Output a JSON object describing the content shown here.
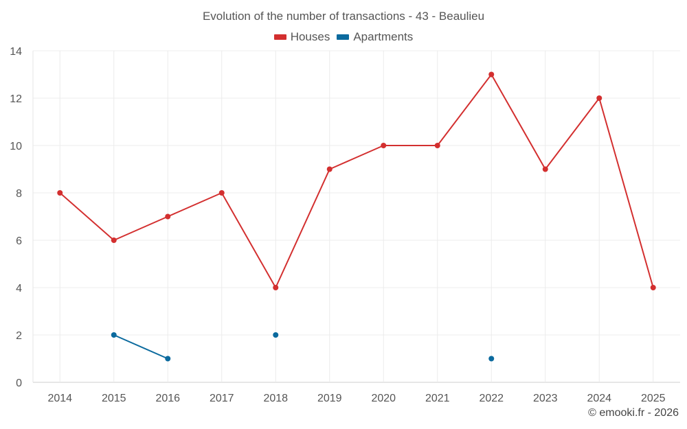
{
  "chart_data": {
    "type": "line",
    "title": "Evolution of the number of transactions - 43 - Beaulieu",
    "categories": [
      "2014",
      "2015",
      "2016",
      "2017",
      "2018",
      "2019",
      "2020",
      "2021",
      "2022",
      "2023",
      "2024",
      "2025"
    ],
    "series": [
      {
        "name": "Houses",
        "color": "#d32f2f",
        "values": [
          8,
          6,
          7,
          8,
          4,
          9,
          10,
          10,
          13,
          9,
          12,
          4
        ]
      },
      {
        "name": "Apartments",
        "color": "#0b6a9e",
        "values": [
          null,
          2,
          1,
          null,
          2,
          null,
          null,
          null,
          1,
          null,
          null,
          null
        ]
      }
    ],
    "ylim": [
      0,
      14
    ],
    "yticks": [
      0,
      2,
      4,
      6,
      8,
      10,
      12,
      14
    ],
    "xlabel": "",
    "ylabel": "",
    "grid": true,
    "legend_position": "top-center"
  },
  "credit": "© emooki.fr - 2026"
}
